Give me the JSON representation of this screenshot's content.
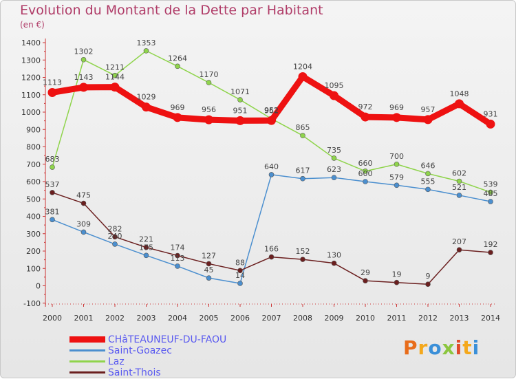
{
  "header": {
    "title": "Evolution du Montant de la Dette par Habitant",
    "subtitle": "(en €)"
  },
  "logo": {
    "text": "Proxiti",
    "letters": [
      {
        "ch": "P",
        "color": "#e86c1a"
      },
      {
        "ch": "r",
        "color": "#f4a81c"
      },
      {
        "ch": "o",
        "color": "#3a8fd8"
      },
      {
        "ch": "x",
        "color": "#8cc63f"
      },
      {
        "ch": "i",
        "color": "#e04a2a"
      },
      {
        "ch": "t",
        "color": "#f4a81c"
      },
      {
        "ch": "i",
        "color": "#3a8fd8"
      }
    ]
  },
  "chart_data": {
    "type": "line",
    "title": "Evolution du Montant de la Dette par Habitant",
    "subtitle": "(en €)",
    "xlabel": "",
    "ylabel": "",
    "x": [
      "2000",
      "2001",
      "2002",
      "2003",
      "2004",
      "2005",
      "2006",
      "2007",
      "2008",
      "2009",
      "2010",
      "2011",
      "2012",
      "2013",
      "2014"
    ],
    "ylim": [
      -100,
      1400
    ],
    "yticks": [
      -100,
      0,
      100,
      200,
      300,
      400,
      500,
      600,
      700,
      800,
      900,
      1000,
      1100,
      1200,
      1300,
      1400
    ],
    "grid": false,
    "legend_position": "bottom-left",
    "series": [
      {
        "name": "CHâTEAUNEUF-DU-FAOU",
        "color": "#ee1111",
        "values": [
          1113,
          1143,
          1144,
          1029,
          969,
          956,
          951,
          952,
          1204,
          1095,
          972,
          969,
          957,
          1048,
          931
        ],
        "labels": [
          "1113",
          "1143",
          "1144",
          "1029",
          "969",
          "956",
          "951",
          "952",
          "1204",
          "1095",
          "972",
          "969",
          "957",
          "1048",
          "931"
        ],
        "style": "thick"
      },
      {
        "name": "Saint-Goazec",
        "color": "#4b8fcf",
        "values": [
          381,
          309,
          240,
          175,
          113,
          45,
          14,
          640,
          617,
          623,
          600,
          579,
          555,
          521,
          485
        ],
        "labels": [
          "381",
          "309",
          "240",
          "175",
          "113",
          "45",
          "14",
          "640",
          "617",
          "623",
          "600",
          "579",
          "555",
          "521",
          "485"
        ],
        "style": "thin"
      },
      {
        "name": "Laz",
        "color": "#8fd44c",
        "values": [
          683,
          1302,
          1211,
          1353,
          1264,
          1170,
          1071,
          962,
          865,
          735,
          660,
          700,
          646,
          602,
          539
        ],
        "labels": [
          "683",
          "1302",
          "1211",
          "1353",
          "1264",
          "1170",
          "1071",
          "962",
          "865",
          "735",
          "660",
          "700",
          "646",
          "602",
          "539"
        ],
        "style": "thin"
      },
      {
        "name": "Saint-Thois",
        "color": "#6b1f1f",
        "values": [
          537,
          475,
          282,
          221,
          174,
          127,
          88,
          166,
          152,
          130,
          29,
          19,
          9,
          207,
          192
        ],
        "labels": [
          "537",
          "475",
          "282",
          "221",
          "174",
          "127",
          "88",
          "166",
          "152",
          "130",
          "29",
          "19",
          "9",
          "207",
          "192"
        ],
        "style": "thin"
      }
    ]
  }
}
